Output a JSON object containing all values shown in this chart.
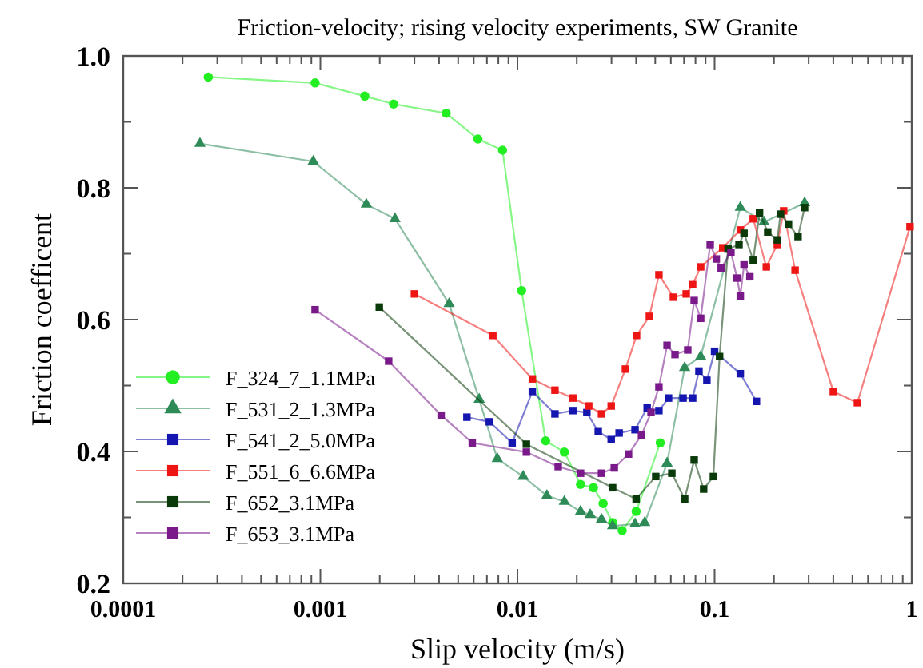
{
  "chart_data": {
    "type": "line",
    "title": "Friction-velocity; rising velocity experiments, SW Granite",
    "xlabel": "Slip velocity (m/s)",
    "ylabel": "Friction coefficent",
    "log": "x",
    "xlim": [
      0.0001,
      1
    ],
    "ylim": [
      0.2,
      1.0
    ],
    "xticks": [
      0.0001,
      {
        "value": 0.0002,
        "label": null
      },
      {
        "value": 0.0003,
        "label": null
      },
      {
        "value": 0.0004,
        "label": null
      },
      {
        "value": 0.0005,
        "label": null
      },
      {
        "value": 0.0006,
        "label": null
      },
      {
        "value": 0.0007,
        "label": null
      },
      {
        "value": 0.0008,
        "label": null
      },
      {
        "value": 0.0009,
        "label": null
      },
      0.001,
      {
        "value": 0.002,
        "label": null
      },
      {
        "value": 0.003,
        "label": null
      },
      {
        "value": 0.004,
        "label": null
      },
      {
        "value": 0.005,
        "label": null
      },
      {
        "value": 0.006,
        "label": null
      },
      {
        "value": 0.007,
        "label": null
      },
      {
        "value": 0.008,
        "label": null
      },
      {
        "value": 0.009,
        "label": null
      },
      0.01,
      {
        "value": 0.02,
        "label": null
      },
      {
        "value": 0.03,
        "label": null
      },
      {
        "value": 0.04,
        "label": null
      },
      {
        "value": 0.05,
        "label": null
      },
      {
        "value": 0.06,
        "label": null
      },
      {
        "value": 0.07,
        "label": null
      },
      {
        "value": 0.08,
        "label": null
      },
      {
        "value": 0.09,
        "label": null
      },
      0.1,
      {
        "value": 0.2,
        "label": null
      },
      {
        "value": 0.3,
        "label": null
      },
      {
        "value": 0.4,
        "label": null
      },
      {
        "value": 0.5,
        "label": null
      },
      {
        "value": 0.6,
        "label": null
      },
      {
        "value": 0.7,
        "label": null
      },
      {
        "value": 0.8,
        "label": null
      },
      {
        "value": 0.9,
        "label": null
      },
      1
    ],
    "yticks": [
      {
        "value": 0.2,
        "label": "0.2"
      },
      {
        "value": 0.3,
        "label": null
      },
      {
        "value": 0.4,
        "label": "0.4"
      },
      {
        "value": 0.5,
        "label": null
      },
      {
        "value": 0.6,
        "label": "0.6"
      },
      {
        "value": 0.7,
        "label": null
      },
      {
        "value": 0.8,
        "label": "0.8"
      },
      {
        "value": 0.9,
        "label": null
      },
      {
        "value": 1.0,
        "label": "1.0"
      }
    ],
    "legend": "bottom left",
    "grid": false,
    "series": [
      {
        "name": "F_324_7_1.1MPa",
        "color": "#22ee22",
        "marker": "circle",
        "x": [
          0.00027,
          0.00094,
          0.00168,
          0.00235,
          0.00435,
          0.0063,
          0.0084,
          0.0105,
          0.0139,
          0.0173,
          0.0209,
          0.0243,
          0.0272,
          0.0304,
          0.034,
          0.04,
          0.053
        ],
        "values": [
          0.968,
          0.959,
          0.939,
          0.927,
          0.913,
          0.874,
          0.857,
          0.644,
          0.416,
          0.399,
          0.35,
          0.345,
          0.321,
          0.292,
          0.28,
          0.309,
          0.413
        ]
      },
      {
        "name": "F_531_2_1.3MPa",
        "color": "#2e8b57",
        "marker": "triangle",
        "x": [
          0.000245,
          0.00092,
          0.00171,
          0.00239,
          0.0045,
          0.0064,
          0.0079,
          0.0107,
          0.0141,
          0.0173,
          0.0209,
          0.0234,
          0.0267,
          0.0304,
          0.0395,
          0.0442,
          0.0574,
          0.0705,
          0.085,
          0.135,
          0.178,
          0.286
        ],
        "values": [
          0.867,
          0.84,
          0.775,
          0.753,
          0.624,
          0.479,
          0.389,
          0.362,
          0.333,
          0.324,
          0.309,
          0.304,
          0.297,
          0.287,
          0.29,
          0.292,
          0.382,
          0.527,
          0.544,
          0.77,
          0.748,
          0.777
        ]
      },
      {
        "name": "F_541_2_5.0MPa",
        "color": "#1515b0",
        "marker": "square",
        "x": [
          0.00554,
          0.0072,
          0.0094,
          0.0119,
          0.0155,
          0.0191,
          0.0225,
          0.0257,
          0.0299,
          0.0328,
          0.0395,
          0.0455,
          0.0522,
          0.0584,
          0.0692,
          0.0774,
          0.0833,
          0.0914,
          0.1,
          0.135,
          0.163
        ],
        "values": [
          0.452,
          0.445,
          0.413,
          0.491,
          0.457,
          0.462,
          0.459,
          0.43,
          0.418,
          0.428,
          0.433,
          0.466,
          0.462,
          0.481,
          0.481,
          0.481,
          0.522,
          0.508,
          0.552,
          0.518,
          0.476
        ]
      },
      {
        "name": "F_551_6_6.6MPa",
        "color": "#ee1515",
        "marker": "square",
        "x": [
          0.003,
          0.0075,
          0.0119,
          0.0155,
          0.0191,
          0.023,
          0.0267,
          0.0299,
          0.0353,
          0.0402,
          0.0467,
          0.0522,
          0.0618,
          0.0718,
          0.0774,
          0.085,
          0.11,
          0.135,
          0.157,
          0.183,
          0.208,
          0.224,
          0.256,
          0.4,
          0.53,
          0.98
        ],
        "values": [
          0.639,
          0.576,
          0.51,
          0.493,
          0.481,
          0.469,
          0.457,
          0.469,
          0.525,
          0.576,
          0.605,
          0.668,
          0.634,
          0.639,
          0.653,
          0.68,
          0.709,
          0.736,
          0.753,
          0.68,
          0.714,
          0.765,
          0.675,
          0.491,
          0.474,
          0.741
        ]
      },
      {
        "name": "F_652_3.1MPa",
        "color": "#0a3a0a",
        "marker": "square",
        "x": [
          0.00199,
          0.0111,
          0.0304,
          0.04,
          0.0503,
          0.0607,
          0.0705,
          0.0788,
          0.088,
          0.0986,
          0.106,
          0.117,
          0.133,
          0.141,
          0.157,
          0.169,
          0.186,
          0.208,
          0.216,
          0.237,
          0.265,
          0.286
        ],
        "values": [
          0.619,
          0.411,
          0.345,
          0.328,
          0.362,
          0.367,
          0.328,
          0.387,
          0.343,
          0.362,
          0.544,
          0.707,
          0.714,
          0.731,
          0.69,
          0.762,
          0.733,
          0.721,
          0.76,
          0.745,
          0.726,
          0.77
        ]
      },
      {
        "name": "F_653_3.1MPa",
        "color": "#7a1a8a",
        "marker": "square",
        "x": [
          0.00094,
          0.00222,
          0.0041,
          0.0059,
          0.0111,
          0.0161,
          0.0209,
          0.0267,
          0.031,
          0.0366,
          0.0426,
          0.0476,
          0.0522,
          0.0574,
          0.063,
          0.0731,
          0.0788,
          0.085,
          0.095,
          0.102,
          0.108,
          0.121,
          0.13,
          0.135,
          0.141,
          0.151
        ],
        "values": [
          0.615,
          0.537,
          0.455,
          0.413,
          0.399,
          0.377,
          0.367,
          0.367,
          0.375,
          0.396,
          0.425,
          0.459,
          0.498,
          0.561,
          0.547,
          0.554,
          0.629,
          0.602,
          0.714,
          0.692,
          0.678,
          0.702,
          0.663,
          0.636,
          0.683,
          0.665
        ]
      }
    ]
  }
}
